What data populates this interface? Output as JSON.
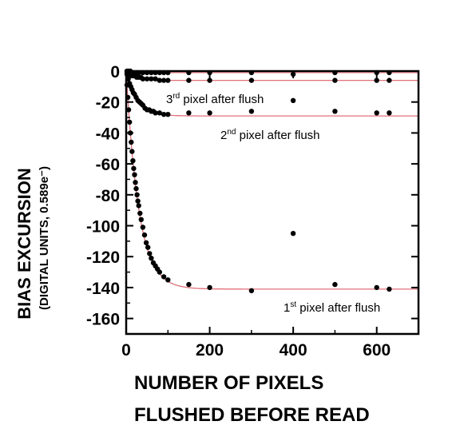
{
  "chart_data": {
    "type": "scatter",
    "title": "",
    "ylabel": "BIAS EXCURSION",
    "ylabel_sub": "(DIGITAL UNITS, 0.589e⁻)",
    "xlabel_line1": "NUMBER OF PIXELS",
    "xlabel_line2": "FLUSHED BEFORE READ",
    "xlim": [
      0,
      700
    ],
    "ylim": [
      -170,
      0
    ],
    "grid": false,
    "legend": "none",
    "x_ticks": [
      0,
      200,
      400,
      600
    ],
    "y_ticks": [
      0,
      -20,
      -40,
      -60,
      -80,
      -100,
      -120,
      -140,
      -160
    ],
    "x_tick_labels": [
      "0",
      "200",
      "400",
      "600"
    ],
    "y_tick_labels": [
      "0",
      "-20",
      "-40",
      "-60",
      "-80",
      "-100",
      "-120",
      "-140",
      "-160"
    ],
    "point_color": "#000000",
    "fit_color": "#e0707a",
    "series": [
      {
        "annotation": {
          "ordinal": "1",
          "suffix": "st",
          "text": " pixel after flush"
        },
        "fit": {
          "asymptote": -141,
          "tau": 30
        },
        "x": [
          2,
          4,
          6,
          8,
          10,
          12,
          14,
          16,
          18,
          20,
          22,
          24,
          26,
          28,
          30,
          33,
          36,
          40,
          44,
          48,
          52,
          56,
          60,
          65,
          70,
          75,
          80,
          90,
          100,
          150,
          200,
          300,
          400,
          500,
          600,
          630
        ],
        "y": [
          -9,
          -17,
          -25,
          -33,
          -40,
          -46,
          -52,
          -58,
          -63,
          -67,
          -72,
          -76,
          -80,
          -84,
          -87,
          -92,
          -96,
          -101,
          -106,
          -111,
          -114,
          -118,
          -121,
          -124,
          -126,
          -128,
          -130,
          -133,
          -135,
          -138,
          -140,
          -142,
          -105,
          -138,
          -140,
          -141
        ]
      },
      {
        "annotation": {
          "ordinal": "2",
          "suffix": "nd",
          "text": " pixel after flush"
        },
        "fit": {
          "asymptote": -29,
          "tau": 25
        },
        "x": [
          2,
          5,
          8,
          11,
          14,
          17,
          20,
          24,
          28,
          32,
          36,
          40,
          45,
          50,
          55,
          60,
          65,
          70,
          80,
          90,
          100,
          150,
          200,
          300,
          500,
          600,
          630
        ],
        "y": [
          -2,
          -5,
          -8,
          -10,
          -12,
          -14,
          -15,
          -17,
          -19,
          -20,
          -21,
          -22,
          -24,
          -25,
          -25,
          -26,
          -26,
          -27,
          -27,
          -28,
          -28,
          -27,
          -27,
          -26,
          -26,
          -27,
          -27
        ]
      },
      {
        "annotation": {
          "ordinal": "3",
          "suffix": "rd",
          "text": " pixel after flush"
        },
        "fit": {
          "asymptote": -6,
          "tau": 15
        },
        "x": [
          2,
          5,
          8,
          11,
          14,
          17,
          20,
          25,
          30,
          35,
          40,
          50,
          60,
          70,
          80,
          90,
          100,
          150,
          200,
          300,
          400,
          500,
          600,
          630
        ],
        "y": [
          -1,
          -1,
          -2,
          -2,
          -3,
          -3,
          -3,
          -4,
          -4,
          -4,
          -5,
          -5,
          -5,
          -5,
          -6,
          -6,
          -6,
          -6,
          -6,
          -6,
          -19,
          -6,
          -6,
          -6
        ]
      },
      {
        "fit": {
          "asymptote": -1,
          "tau": 10
        },
        "x": [
          2,
          6,
          10,
          15,
          20,
          25,
          30,
          40,
          50,
          60,
          70,
          80,
          90,
          100,
          150,
          200,
          300,
          400,
          500,
          600,
          630
        ],
        "y": [
          0,
          0,
          0,
          -1,
          -1,
          -1,
          -1,
          -1,
          -1,
          -1,
          -1,
          -1,
          -1,
          -1,
          -1,
          -1,
          -1,
          -2,
          -1,
          -1,
          -1
        ]
      }
    ]
  }
}
